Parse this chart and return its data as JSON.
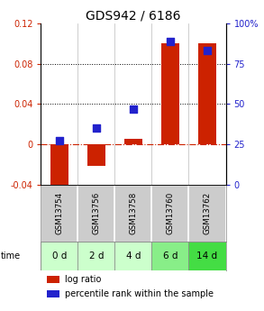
{
  "title": "GDS942 / 6186",
  "samples": [
    "GSM13754",
    "GSM13756",
    "GSM13758",
    "GSM13760",
    "GSM13762"
  ],
  "time_labels": [
    "0 d",
    "2 d",
    "4 d",
    "6 d",
    "14 d"
  ],
  "log_ratios": [
    -0.048,
    -0.022,
    0.005,
    0.1,
    0.1
  ],
  "percentile_ranks": [
    27,
    35,
    47,
    89,
    83
  ],
  "left_ylim": [
    -0.04,
    0.12
  ],
  "right_ylim": [
    0,
    100
  ],
  "left_yticks": [
    -0.04,
    0.0,
    0.04,
    0.08,
    0.12
  ],
  "right_yticks": [
    0,
    25,
    50,
    75,
    100
  ],
  "right_yticklabels": [
    "0",
    "25",
    "50",
    "75",
    "100%"
  ],
  "dotted_lines": [
    0.04,
    0.08
  ],
  "bar_color": "#cc2200",
  "dot_color": "#2222cc",
  "zero_line_color": "#cc2200",
  "left_tick_color": "#cc2200",
  "right_tick_color": "#2222cc",
  "grid_bg": "#cccccc",
  "time_row_colors": [
    "#ccffcc",
    "#ccffcc",
    "#ccffcc",
    "#88ee88",
    "#44dd44"
  ],
  "bar_width": 0.5,
  "dot_size": 28,
  "title_fontsize": 10,
  "tick_fontsize": 7,
  "label_fontsize": 7
}
